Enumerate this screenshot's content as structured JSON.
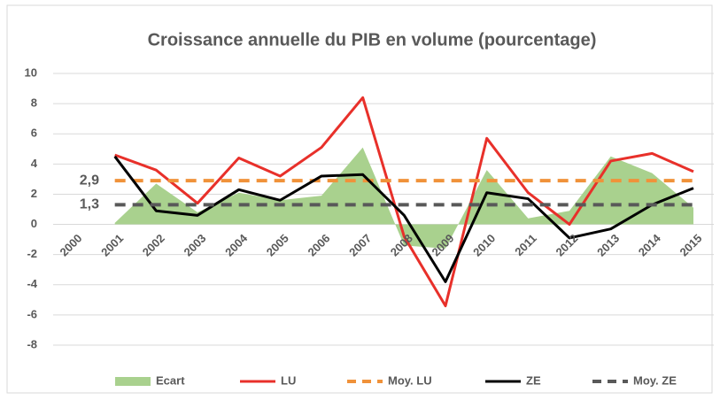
{
  "chart_data": {
    "type": "line",
    "title": "Croissance annuelle du PIB en volume (pourcentage)",
    "categories": [
      "2000",
      "2001",
      "2002",
      "2003",
      "2004",
      "2005",
      "2006",
      "2007",
      "2008",
      "2009",
      "2010",
      "2011",
      "2012",
      "2013",
      "2014",
      "2015"
    ],
    "series": [
      {
        "name": "Ecart",
        "color": "#a9d18e",
        "kind": "area",
        "values": [
          null,
          0.1,
          2.7,
          0.8,
          2.1,
          1.6,
          1.9,
          5.1,
          -1.4,
          -1.6,
          3.6,
          0.4,
          0.9,
          4.5,
          3.4,
          1.1
        ]
      },
      {
        "name": "LU",
        "color": "#e8302a",
        "kind": "line",
        "values": [
          null,
          4.6,
          3.6,
          1.4,
          4.4,
          3.2,
          5.1,
          8.4,
          -0.8,
          -5.4,
          5.7,
          2.1,
          0.0,
          4.2,
          4.7,
          3.5
        ]
      },
      {
        "name": "Moy. LU",
        "color": "#f0923a",
        "kind": "dashed",
        "values": [
          null,
          2.9,
          2.9,
          2.9,
          2.9,
          2.9,
          2.9,
          2.9,
          2.9,
          2.9,
          2.9,
          2.9,
          2.9,
          2.9,
          2.9,
          2.9
        ]
      },
      {
        "name": "ZE",
        "color": "#000000",
        "kind": "line",
        "values": [
          null,
          4.5,
          0.9,
          0.6,
          2.3,
          1.6,
          3.2,
          3.3,
          0.6,
          -3.8,
          2.1,
          1.7,
          -0.9,
          -0.3,
          1.3,
          2.4
        ]
      },
      {
        "name": "Moy. ZE",
        "color": "#595959",
        "kind": "dashed",
        "values": [
          null,
          1.3,
          1.3,
          1.3,
          1.3,
          1.3,
          1.3,
          1.3,
          1.3,
          1.3,
          1.3,
          1.3,
          1.3,
          1.3,
          1.3,
          1.3
        ]
      }
    ],
    "annotations": [
      {
        "text": "2,9",
        "value": 2.9
      },
      {
        "text": "1,3",
        "value": 1.3
      }
    ],
    "ylim": [
      -8,
      10
    ],
    "yticks": [
      -8,
      -6,
      -4,
      -2,
      0,
      2,
      4,
      6,
      8,
      10
    ],
    "grid": true,
    "legend": "bottom"
  }
}
